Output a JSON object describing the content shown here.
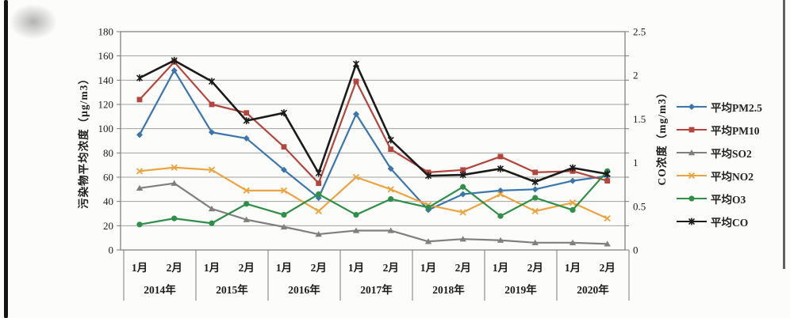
{
  "chart_data": {
    "type": "line",
    "title": "",
    "grid": true,
    "legend_position": "right",
    "left_axis": {
      "title": "污染物平均浓度（μg/m3）",
      "min": 0,
      "max": 180,
      "tick_labels": [
        "0",
        "20",
        "40",
        "60",
        "80",
        "100",
        "120",
        "140",
        "160",
        "180"
      ],
      "tick_values": [
        0,
        20,
        40,
        60,
        80,
        100,
        120,
        140,
        160,
        180
      ]
    },
    "right_axis": {
      "title": "CO浓度（mg/m3）",
      "min": 0,
      "max": 2.5,
      "tick_labels": [
        "0",
        "0.5",
        "1",
        "1.5",
        "2",
        "2.5"
      ],
      "tick_values": [
        0,
        0.5,
        1,
        1.5,
        2,
        2.5
      ]
    },
    "x_groups": [
      {
        "year": "2014年",
        "months": [
          "1月",
          "2月"
        ]
      },
      {
        "year": "2015年",
        "months": [
          "1月",
          "2月"
        ]
      },
      {
        "year": "2016年",
        "months": [
          "1月",
          "2月"
        ]
      },
      {
        "year": "2017年",
        "months": [
          "1月",
          "2月"
        ]
      },
      {
        "year": "2018年",
        "months": [
          "1月",
          "2月"
        ]
      },
      {
        "year": "2019年",
        "months": [
          "1月",
          "2月"
        ]
      },
      {
        "year": "2020年",
        "months": [
          "1月",
          "2月"
        ]
      }
    ],
    "series": [
      {
        "name": "平均PM2.5",
        "axis": "left",
        "unit": "μg/m3",
        "color": "#3a76ae",
        "marker": "diamond",
        "values": [
          95,
          148,
          97,
          92,
          66,
          43,
          112,
          67,
          33,
          46,
          49,
          50,
          57,
          61
        ]
      },
      {
        "name": "平均PM10",
        "axis": "left",
        "unit": "μg/m3",
        "color": "#b4453c",
        "marker": "square",
        "values": [
          124,
          155,
          120,
          113,
          85,
          55,
          139,
          83,
          64,
          66,
          77,
          64,
          65,
          57
        ]
      },
      {
        "name": "平均SO2",
        "axis": "left",
        "unit": "μg/m3",
        "color": "#7f7f7f",
        "marker": "triangle",
        "values": [
          51,
          55,
          34,
          25,
          19,
          13,
          16,
          16,
          7,
          9,
          8,
          6,
          6,
          5
        ]
      },
      {
        "name": "平均NO2",
        "axis": "left",
        "unit": "μg/m3",
        "color": "#eda33e",
        "marker": "x",
        "values": [
          65,
          68,
          66,
          49,
          49,
          32,
          60,
          50,
          37,
          31,
          46,
          32,
          39,
          26
        ]
      },
      {
        "name": "平均O3",
        "axis": "left",
        "unit": "μg/m3",
        "color": "#2e8f47",
        "marker": "circle",
        "values": [
          21,
          26,
          22,
          38,
          29,
          46,
          29,
          42,
          35,
          52,
          28,
          43,
          33,
          65
        ]
      },
      {
        "name": "平均CO",
        "axis": "right",
        "unit": "mg/m3",
        "color": "#1b1b1b",
        "marker": "star",
        "values": [
          1.97,
          2.17,
          1.93,
          1.48,
          1.57,
          0.88,
          2.13,
          1.26,
          0.85,
          0.86,
          0.93,
          0.78,
          0.94,
          0.87
        ]
      }
    ]
  }
}
